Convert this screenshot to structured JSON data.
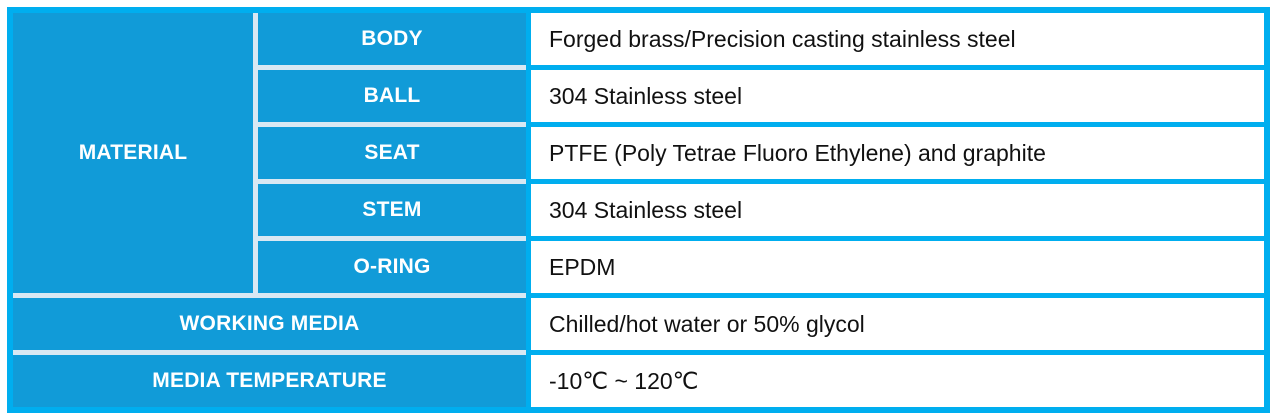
{
  "table": {
    "material": {
      "group_label": "MATERIAL",
      "rows": [
        {
          "label": "BODY",
          "value": "Forged brass/Precision casting stainless steel"
        },
        {
          "label": "BALL",
          "value": "304 Stainless steel"
        },
        {
          "label": "SEAT",
          "value": "PTFE (Poly Tetrae Fluoro Ethylene) and graphite"
        },
        {
          "label": "STEM",
          "value": "304 Stainless steel"
        },
        {
          "label": "O-RING",
          "value": "EPDM"
        }
      ]
    },
    "working_media": {
      "label": "WORKING MEDIA",
      "value": "Chilled/hot water or 50% glycol"
    },
    "media_temperature": {
      "label": "MEDIA TEMPERATURE",
      "value": "-10℃ ~ 120℃"
    }
  },
  "colors": {
    "accent_border": "#00aeef",
    "cell_fill": "#119bd8",
    "separator": "#d9e8f3",
    "value_text": "#111111",
    "header_text": "#ffffff"
  }
}
